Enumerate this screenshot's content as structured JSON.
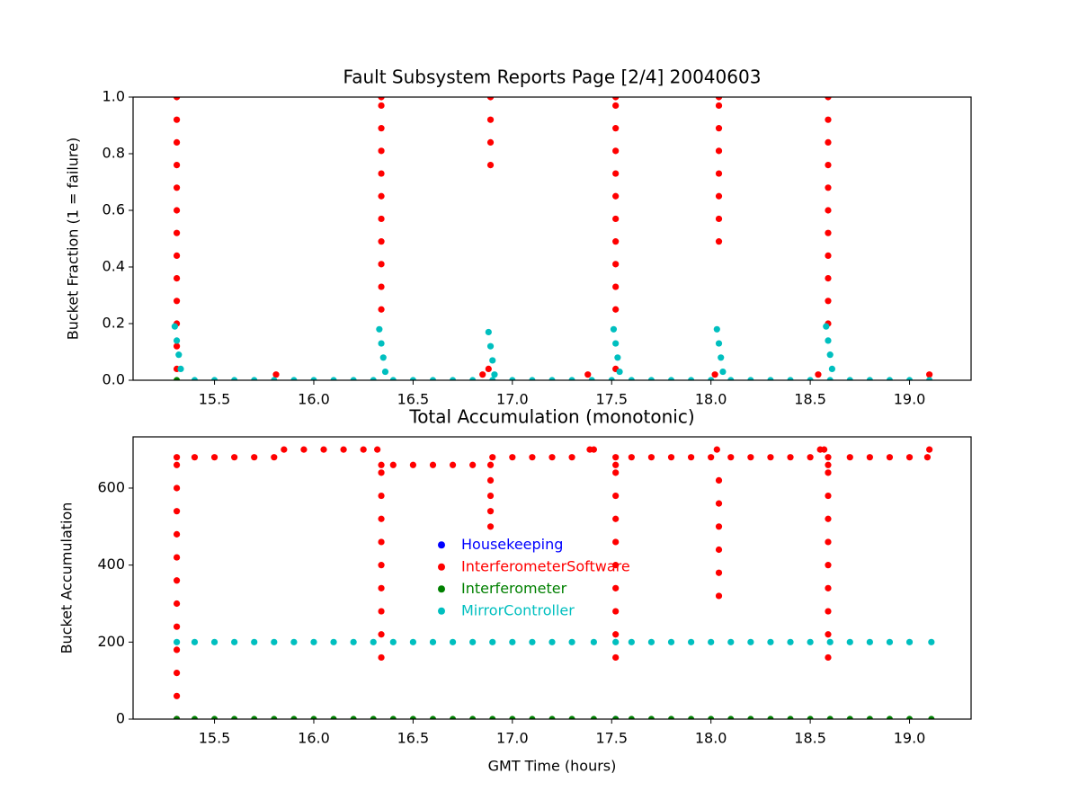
{
  "chart_data": [
    {
      "type": "scatter",
      "title": "Fault Subsystem Reports Page [2/4] 20040603",
      "ylabel": "Bucket Fraction (1 = failure)",
      "xlim": [
        15.09,
        19.31
      ],
      "ylim": [
        0,
        1
      ],
      "xticks": [
        15.5,
        {
          "value": 16,
          "label": "16.0"
        },
        16.5,
        {
          "value": 17,
          "label": "17.0"
        },
        17.5,
        {
          "value": 18,
          "label": "18.0"
        },
        18.5,
        {
          "value": 19,
          "label": "19.0"
        }
      ],
      "yticks": [
        {
          "value": 0,
          "label": "0.0"
        },
        0.2,
        0.4,
        0.6,
        0.8,
        {
          "value": 1,
          "label": "1.0"
        }
      ],
      "series": [
        {
          "name": "InterferometerSoftware",
          "color": "#ff0000",
          "x": [
            15.31,
            15.31,
            15.31,
            15.31,
            15.31,
            15.31,
            15.31,
            15.31,
            15.31,
            15.31,
            15.31,
            15.31,
            15.31,
            16.34,
            16.34,
            16.34,
            16.34,
            16.34,
            16.34,
            16.34,
            16.34,
            16.34,
            16.34,
            16.34,
            16.89,
            16.89,
            16.89,
            16.89,
            17.52,
            17.52,
            17.52,
            17.52,
            17.52,
            17.52,
            17.52,
            17.52,
            17.52,
            17.52,
            17.52,
            17.52,
            18.04,
            18.04,
            18.04,
            18.04,
            18.04,
            18.04,
            18.04,
            18.04,
            18.59,
            18.59,
            18.59,
            18.59,
            18.59,
            18.59,
            18.59,
            18.59,
            18.59,
            18.59,
            18.59,
            15.81,
            16.85,
            16.88,
            17.38,
            18.02,
            18.54,
            19.1
          ],
          "values": [
            0.04,
            0.12,
            0.2,
            0.28,
            0.36,
            0.44,
            0.52,
            0.6,
            0.68,
            0.76,
            0.84,
            0.92,
            1,
            0.25,
            0.33,
            0.41,
            0.49,
            0.57,
            0.65,
            0.73,
            0.81,
            0.89,
            0.97,
            1,
            0.76,
            0.84,
            0.92,
            1,
            0.04,
            0.25,
            0.33,
            0.41,
            0.49,
            0.57,
            0.65,
            0.73,
            0.81,
            0.89,
            0.97,
            1,
            0.49,
            0.57,
            0.65,
            0.73,
            0.81,
            0.89,
            0.97,
            1,
            0.2,
            0.28,
            0.36,
            0.44,
            0.52,
            0.6,
            0.68,
            0.76,
            0.84,
            0.92,
            1,
            0.02,
            0.02,
            0.04,
            0.02,
            0.02,
            0.02,
            0.02
          ]
        },
        {
          "name": "Interferometer",
          "color": "#008000",
          "x": [
            15.31
          ],
          "values": [
            0
          ]
        },
        {
          "name": "MirrorController",
          "color": "#00bfbf",
          "x": [
            15.4,
            15.5,
            15.6,
            15.7,
            15.8,
            15.9,
            16.0,
            16.1,
            16.2,
            16.3,
            16.4,
            16.5,
            16.6,
            16.7,
            16.8,
            16.9,
            17.0,
            17.1,
            17.2,
            17.3,
            17.4,
            17.5,
            17.6,
            17.7,
            17.8,
            17.9,
            18.0,
            18.1,
            18.2,
            18.3,
            18.4,
            18.5,
            18.6,
            18.7,
            18.8,
            18.9,
            19.0,
            19.1,
            15.3,
            15.31,
            15.32,
            15.33,
            16.33,
            16.34,
            16.35,
            16.36,
            16.88,
            16.89,
            16.9,
            16.91,
            17.51,
            17.52,
            17.53,
            17.54,
            18.03,
            18.04,
            18.05,
            18.06,
            18.58,
            18.59,
            18.6,
            18.61
          ],
          "values": [
            0,
            0,
            0,
            0,
            0,
            0,
            0,
            0,
            0,
            0,
            0,
            0,
            0,
            0,
            0,
            0,
            0,
            0,
            0,
            0,
            0,
            0,
            0,
            0,
            0,
            0,
            0,
            0,
            0,
            0,
            0,
            0,
            0,
            0,
            0,
            0,
            0,
            0,
            0.19,
            0.14,
            0.09,
            0.04,
            0.18,
            0.13,
            0.08,
            0.03,
            0.17,
            0.12,
            0.07,
            0.02,
            0.18,
            0.13,
            0.08,
            0.03,
            0.18,
            0.13,
            0.08,
            0.03,
            0.19,
            0.14,
            0.09,
            0.04
          ]
        }
      ]
    },
    {
      "type": "scatter",
      "title": "Total Accumulation (monotonic)",
      "ylabel": "Bucket Accumulation",
      "xlabel": "GMT Time (hours)",
      "xlim": [
        15.09,
        19.31
      ],
      "ylim": [
        0,
        733
      ],
      "legend": "center",
      "xticks": [
        15.5,
        {
          "value": 16,
          "label": "16.0"
        },
        16.5,
        {
          "value": 17,
          "label": "17.0"
        },
        17.5,
        {
          "value": 18,
          "label": "18.0"
        },
        18.5,
        {
          "value": 19,
          "label": "19.0"
        }
      ],
      "yticks": [
        0,
        200,
        400,
        600
      ],
      "series": [
        {
          "name": "Housekeeping",
          "color": "#0000ff",
          "x": [
            15.31,
            17.52
          ],
          "values": [
            0,
            0
          ]
        },
        {
          "name": "InterferometerSoftware",
          "color": "#ff0000",
          "x": [
            15.31,
            15.31,
            15.31,
            15.31,
            15.31,
            15.31,
            15.31,
            15.31,
            15.31,
            15.31,
            15.31,
            15.31,
            15.31,
            15.4,
            15.5,
            15.6,
            15.7,
            15.8,
            15.85,
            15.95,
            16.05,
            16.15,
            16.25,
            16.32,
            16.34,
            16.34,
            16.34,
            16.34,
            16.34,
            16.34,
            16.34,
            16.34,
            16.34,
            16.34,
            16.4,
            16.5,
            16.6,
            16.7,
            16.8,
            16.9,
            17.0,
            17.1,
            17.2,
            17.3,
            16.89,
            16.89,
            16.89,
            16.89,
            16.89,
            17.39,
            17.41,
            17.52,
            17.52,
            17.52,
            17.52,
            17.52,
            17.52,
            17.52,
            17.52,
            17.52,
            17.52,
            17.52,
            17.6,
            17.7,
            17.8,
            17.9,
            18.0,
            18.03,
            18.04,
            18.04,
            18.04,
            18.04,
            18.04,
            18.04,
            18.1,
            18.2,
            18.3,
            18.4,
            18.5,
            18.55,
            18.57,
            18.59,
            18.59,
            18.59,
            18.59,
            18.59,
            18.59,
            18.59,
            18.59,
            18.59,
            18.59,
            18.59,
            18.7,
            18.8,
            18.9,
            19.0,
            19.09,
            19.1
          ],
          "values": [
            0,
            60,
            120,
            180,
            240,
            300,
            360,
            420,
            480,
            540,
            600,
            660,
            680,
            680,
            680,
            680,
            680,
            680,
            700,
            700,
            700,
            700,
            700,
            700,
            160,
            220,
            280,
            340,
            400,
            460,
            520,
            580,
            640,
            660,
            660,
            660,
            660,
            660,
            660,
            680,
            680,
            680,
            680,
            680,
            500,
            540,
            580,
            620,
            660,
            700,
            700,
            160,
            220,
            280,
            340,
            400,
            460,
            520,
            580,
            640,
            660,
            680,
            680,
            680,
            680,
            680,
            680,
            700,
            320,
            380,
            440,
            500,
            560,
            620,
            680,
            680,
            680,
            680,
            680,
            700,
            700,
            160,
            220,
            280,
            340,
            400,
            460,
            520,
            580,
            640,
            660,
            680,
            680,
            680,
            680,
            680,
            680,
            700
          ]
        },
        {
          "name": "Interferometer",
          "color": "#008000",
          "x": [
            15.31,
            15.4,
            15.5,
            15.6,
            15.7,
            15.8,
            15.9,
            16.0,
            16.1,
            16.2,
            16.3,
            16.4,
            16.5,
            16.6,
            16.7,
            16.8,
            16.9,
            17.0,
            17.1,
            17.2,
            17.3,
            17.41,
            17.52,
            17.6,
            17.7,
            17.8,
            17.9,
            18.0,
            18.1,
            18.2,
            18.3,
            18.4,
            18.5,
            18.6,
            18.7,
            18.8,
            18.9,
            19.0,
            19.11
          ],
          "values": [
            0,
            0,
            0,
            0,
            0,
            0,
            0,
            0,
            0,
            0,
            0,
            0,
            0,
            0,
            0,
            0,
            0,
            0,
            0,
            0,
            0,
            0,
            0,
            0,
            0,
            0,
            0,
            0,
            0,
            0,
            0,
            0,
            0,
            0,
            0,
            0,
            0,
            0,
            0
          ]
        },
        {
          "name": "MirrorController",
          "color": "#00bfbf",
          "x": [
            15.31,
            15.4,
            15.5,
            15.6,
            15.7,
            15.8,
            15.9,
            16.0,
            16.1,
            16.2,
            16.3,
            16.4,
            16.5,
            16.6,
            16.7,
            16.8,
            16.9,
            17.0,
            17.1,
            17.2,
            17.3,
            17.41,
            17.52,
            17.6,
            17.7,
            17.8,
            17.9,
            18.0,
            18.1,
            18.2,
            18.3,
            18.4,
            18.5,
            18.6,
            18.7,
            18.8,
            18.9,
            19.0,
            19.11
          ],
          "values": [
            200,
            200,
            200,
            200,
            200,
            200,
            200,
            200,
            200,
            200,
            200,
            200,
            200,
            200,
            200,
            200,
            200,
            200,
            200,
            200,
            200,
            200,
            200,
            200,
            200,
            200,
            200,
            200,
            200,
            200,
            200,
            200,
            200,
            200,
            200,
            200,
            200,
            200,
            200
          ]
        }
      ]
    }
  ]
}
